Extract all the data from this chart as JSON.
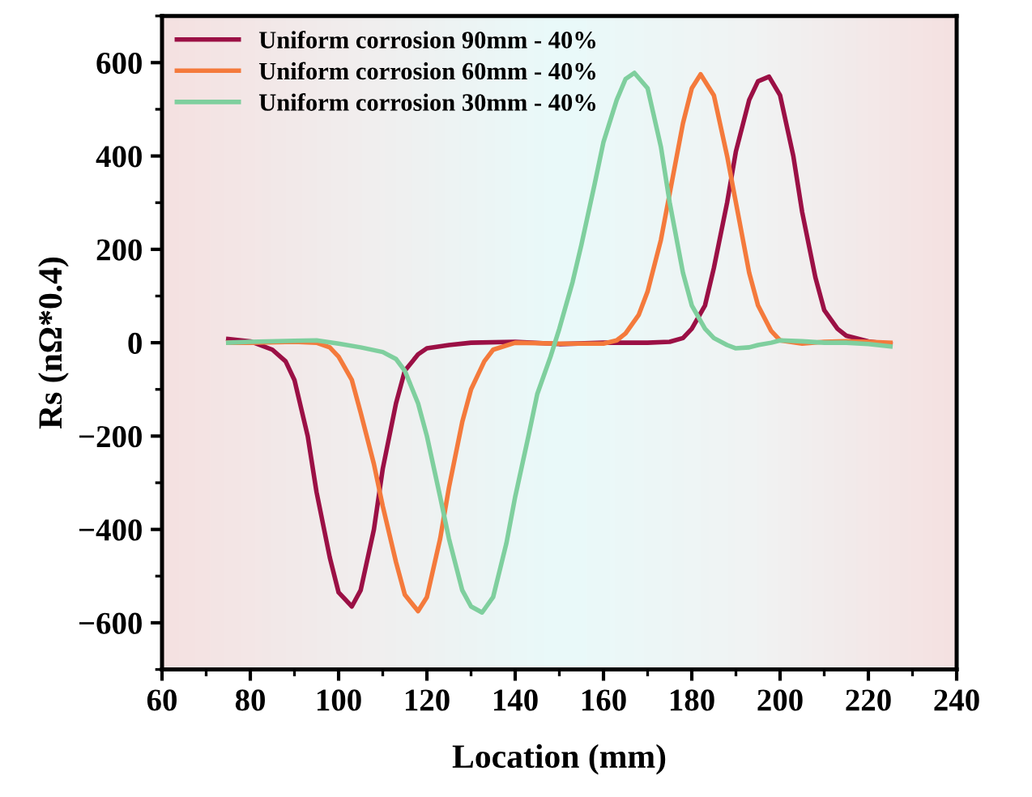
{
  "chart_data": {
    "type": "line",
    "xlabel": "Location (mm)",
    "ylabel": "Rs (nΩ*0.4)",
    "xlim": [
      60,
      240
    ],
    "xticks": [
      60,
      80,
      100,
      120,
      140,
      160,
      180,
      200,
      220,
      240
    ],
    "ylim": [
      -700,
      700
    ],
    "yticks": [
      {
        "value": -600,
        "label": "−600"
      },
      {
        "value": -400,
        "label": "−400"
      },
      {
        "value": -200,
        "label": "−200"
      },
      0,
      200,
      400,
      600
    ],
    "grid": false,
    "legend": "top left",
    "marker": "none",
    "line_style": "solid",
    "series": [
      {
        "name": "Uniform corrosion 90mm - 40%",
        "color": "#9b1045",
        "x": [
          75,
          80,
          85,
          88,
          90,
          93,
          95,
          98,
          100,
          103,
          105,
          108,
          110,
          113,
          115,
          118,
          120,
          125,
          130,
          140,
          150,
          160,
          170,
          175,
          178,
          180,
          183,
          185,
          188,
          190,
          193,
          195,
          197.5,
          200,
          203,
          205,
          208,
          210,
          213,
          215,
          220,
          225
        ],
        "values": [
          8,
          3,
          -15,
          -40,
          -80,
          -200,
          -320,
          -460,
          -535,
          -565,
          -530,
          -400,
          -270,
          -130,
          -60,
          -25,
          -12,
          -5,
          0,
          2,
          -3,
          0,
          0,
          2,
          10,
          30,
          80,
          160,
          300,
          410,
          520,
          560,
          570,
          530,
          400,
          280,
          140,
          70,
          30,
          15,
          3,
          -3
        ]
      },
      {
        "name": "Uniform corrosion 60mm - 40%",
        "color": "#f47a3c",
        "x": [
          75,
          80,
          90,
          95,
          98,
          100,
          103,
          105,
          108,
          110,
          113,
          115,
          118,
          120,
          123,
          125,
          128,
          130,
          133,
          135,
          140,
          150,
          160,
          163,
          165,
          168,
          170,
          173,
          175,
          178,
          180,
          182,
          185,
          188,
          190,
          193,
          195,
          198,
          200,
          205,
          210,
          215,
          220,
          225
        ],
        "values": [
          0,
          0,
          2,
          0,
          -10,
          -30,
          -80,
          -150,
          -260,
          -350,
          -470,
          -540,
          -575,
          -545,
          -420,
          -310,
          -170,
          -100,
          -40,
          -15,
          0,
          -2,
          -2,
          5,
          20,
          60,
          110,
          220,
          320,
          470,
          545,
          575,
          530,
          400,
          300,
          150,
          80,
          25,
          5,
          -2,
          2,
          3,
          2,
          0
        ]
      },
      {
        "name": "Uniform corrosion 30mm - 40%",
        "color": "#7fcf9e",
        "x": [
          75,
          80,
          90,
          95,
          100,
          105,
          110,
          113,
          115,
          118,
          120,
          123,
          125,
          128,
          130,
          132.5,
          135,
          138,
          140,
          143,
          145,
          148,
          150,
          153,
          155,
          158,
          160,
          163,
          165,
          167,
          170,
          173,
          175,
          178,
          180,
          183,
          185,
          188,
          190,
          193,
          195,
          198,
          200,
          205,
          210,
          215,
          220,
          225
        ],
        "values": [
          0,
          2,
          4,
          5,
          -2,
          -10,
          -20,
          -35,
          -60,
          -130,
          -200,
          -330,
          -420,
          -530,
          -565,
          -578,
          -545,
          -430,
          -330,
          -200,
          -110,
          -30,
          30,
          130,
          210,
          340,
          430,
          520,
          565,
          578,
          545,
          420,
          300,
          150,
          80,
          30,
          10,
          -5,
          -12,
          -10,
          -5,
          0,
          5,
          3,
          0,
          0,
          -3,
          -8
        ]
      }
    ]
  }
}
